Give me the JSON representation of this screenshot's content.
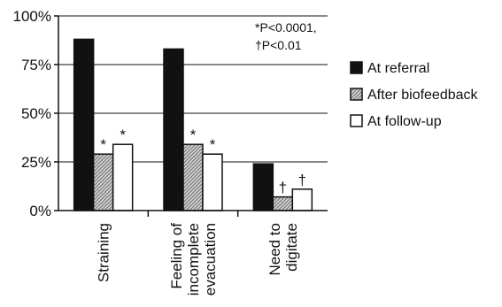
{
  "chart_data": {
    "type": "bar",
    "categories": [
      [
        "Straining"
      ],
      [
        "Feeling of",
        "incomplete",
        "evacuation"
      ],
      [
        "Need to",
        "digitate"
      ]
    ],
    "series": [
      {
        "name": "At referral",
        "values": [
          88,
          83,
          24
        ],
        "color": "#111111",
        "fill": "solid"
      },
      {
        "name": "After biofeedback",
        "values": [
          29,
          34,
          7
        ],
        "color": "#b8b8b8",
        "fill": "hatched",
        "markers": [
          "*",
          "*",
          "†"
        ]
      },
      {
        "name": "At follow-up",
        "values": [
          34,
          29,
          11
        ],
        "color": "#ffffff",
        "fill": "empty",
        "markers": [
          "*",
          "*",
          "†"
        ]
      }
    ],
    "ylim": [
      0,
      100
    ],
    "yticks": [
      0,
      25,
      50,
      75,
      100
    ],
    "ytick_labels": [
      "0%",
      "25%",
      "50%",
      "75%",
      "100%"
    ],
    "grid": true,
    "legend_position": "right",
    "annotation": [
      "*P<0.0001,",
      "†P<0.01"
    ]
  }
}
